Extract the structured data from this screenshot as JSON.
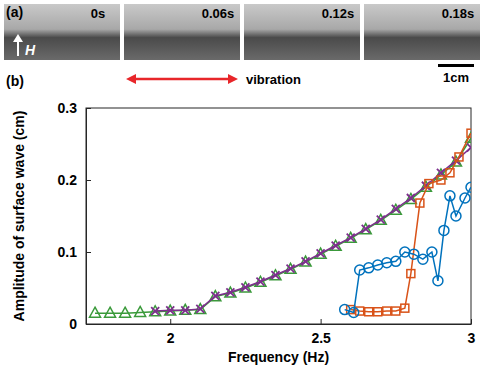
{
  "chart_data": {
    "type": "line",
    "x_label": "Frequency (Hz)",
    "y_label": "Amplitude of surface wave (cm)",
    "annotations": [
      "(a)",
      "0s",
      "0.06s",
      "0.12s",
      "0.18s",
      "H",
      "vibration",
      "1cm",
      "(b)"
    ],
    "xlim": [
      1.72,
      3.0
    ],
    "ylim": [
      0,
      0.3
    ],
    "xticks": [
      2,
      2.5,
      3
    ],
    "yticks": [
      0,
      0.1,
      0.2,
      0.3
    ],
    "grid": false,
    "series": [
      {
        "color": "#3a9a3a",
        "marker": "triangle",
        "line_style": "solid",
        "x": [
          1.75,
          1.8,
          1.85,
          1.9,
          1.95,
          2.0,
          2.05,
          2.1,
          2.15,
          2.2,
          2.25,
          2.3,
          2.35,
          2.4,
          2.45,
          2.5,
          2.55,
          2.6,
          2.65,
          2.7,
          2.75,
          2.8,
          2.85,
          2.9,
          2.95,
          3.0
        ],
        "values": [
          0.015,
          0.015,
          0.015,
          0.016,
          0.017,
          0.018,
          0.019,
          0.02,
          0.038,
          0.043,
          0.05,
          0.058,
          0.067,
          0.076,
          0.086,
          0.097,
          0.108,
          0.119,
          0.131,
          0.144,
          0.158,
          0.173,
          0.19,
          0.207,
          0.225,
          0.258
        ]
      },
      {
        "color": "#7e2f8e",
        "marker": "x",
        "line_style": "solid",
        "x": [
          1.95,
          2.0,
          2.05,
          2.1,
          2.15,
          2.2,
          2.25,
          2.3,
          2.35,
          2.4,
          2.45,
          2.5,
          2.55,
          2.6,
          2.65,
          2.7,
          2.75,
          2.8,
          2.85,
          2.9,
          2.95,
          3.0
        ],
        "values": [
          0.018,
          0.019,
          0.019,
          0.021,
          0.039,
          0.044,
          0.051,
          0.059,
          0.068,
          0.077,
          0.087,
          0.098,
          0.109,
          0.12,
          0.132,
          0.145,
          0.16,
          0.175,
          0.192,
          0.21,
          0.227,
          0.245
        ]
      },
      {
        "color": "#d95319",
        "marker": "square",
        "line_style": "solid",
        "x": [
          2.6,
          2.63,
          2.66,
          2.69,
          2.72,
          2.75,
          2.78,
          2.8,
          2.83,
          2.86,
          2.9,
          2.93,
          2.96,
          3.0
        ],
        "values": [
          0.02,
          0.018,
          0.017,
          0.017,
          0.018,
          0.018,
          0.022,
          0.07,
          0.168,
          0.195,
          0.2,
          0.21,
          0.232,
          0.265
        ]
      },
      {
        "color": "#0072bd",
        "marker": "circle",
        "line_style": "solid",
        "x": [
          2.58,
          2.61,
          2.63,
          2.66,
          2.69,
          2.72,
          2.75,
          2.78,
          2.81,
          2.84,
          2.87,
          2.89,
          2.91,
          2.93,
          2.95,
          2.98,
          3.0
        ],
        "values": [
          0.02,
          0.016,
          0.075,
          0.078,
          0.082,
          0.085,
          0.087,
          0.1,
          0.097,
          0.09,
          0.1,
          0.06,
          0.13,
          0.178,
          0.15,
          0.175,
          0.19
        ]
      }
    ]
  }
}
